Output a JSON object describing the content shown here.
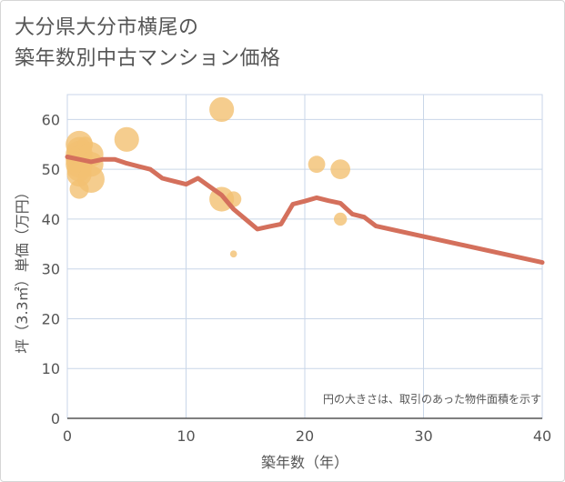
{
  "title": {
    "line1": "大分県大分市横尾の",
    "line2": "築年数別中古マンション価格"
  },
  "chart_data": {
    "type": "scatter",
    "xlabel": "築年数（年）",
    "ylabel": "坪（3.3㎡）単価（万円）",
    "xlim": [
      0,
      40
    ],
    "ylim": [
      0,
      65
    ],
    "xticks": [
      "0",
      "10",
      "20",
      "30",
      "40"
    ],
    "yticks": [
      "0",
      "10",
      "20",
      "30",
      "40",
      "50",
      "60"
    ],
    "grid": true,
    "note": "円の大きさは、取引のあった物件面積を示す",
    "colors": {
      "bubble": "#f3c072",
      "line": "#d4705c",
      "grid": "#c9d6e8",
      "axis": "#555555"
    },
    "bubbles": [
      {
        "x": 1,
        "y": 55,
        "size": 3
      },
      {
        "x": 1,
        "y": 54,
        "size": 2.5
      },
      {
        "x": 1,
        "y": 53,
        "size": 3
      },
      {
        "x": 1,
        "y": 52,
        "size": 3
      },
      {
        "x": 1,
        "y": 51,
        "size": 3
      },
      {
        "x": 1,
        "y": 50,
        "size": 2.5
      },
      {
        "x": 1,
        "y": 49,
        "size": 2.5
      },
      {
        "x": 1,
        "y": 46,
        "size": 1.5
      },
      {
        "x": 1.5,
        "y": 55,
        "size": 1
      },
      {
        "x": 2,
        "y": 53,
        "size": 2.5
      },
      {
        "x": 2,
        "y": 51,
        "size": 2.5
      },
      {
        "x": 2,
        "y": 48,
        "size": 3
      },
      {
        "x": 5,
        "y": 56,
        "size": 2.5
      },
      {
        "x": 13,
        "y": 62,
        "size": 2.5
      },
      {
        "x": 13,
        "y": 44,
        "size": 2.5
      },
      {
        "x": 14,
        "y": 44,
        "size": 1
      },
      {
        "x": 14,
        "y": 33,
        "size": 0.2
      },
      {
        "x": 21,
        "y": 51,
        "size": 1.2
      },
      {
        "x": 23,
        "y": 50,
        "size": 1.6
      },
      {
        "x": 23,
        "y": 40,
        "size": 0.7
      }
    ],
    "series": [
      {
        "type": "line",
        "x": [
          0,
          1,
          2,
          3,
          4,
          5,
          6,
          7,
          8,
          9,
          10,
          11,
          12,
          13,
          14,
          15,
          16,
          17,
          18,
          19,
          20,
          21,
          22,
          23,
          24,
          25,
          26,
          40
        ],
        "values": [
          52.5,
          52,
          51.5,
          52,
          52,
          51.2,
          50.6,
          50,
          48.2,
          47.6,
          47,
          48.2,
          46.5,
          44.8,
          42,
          40,
          38,
          38.5,
          39,
          43,
          43.6,
          44.3,
          43.7,
          43.2,
          41,
          40.4,
          38.6,
          31.3
        ]
      }
    ]
  }
}
